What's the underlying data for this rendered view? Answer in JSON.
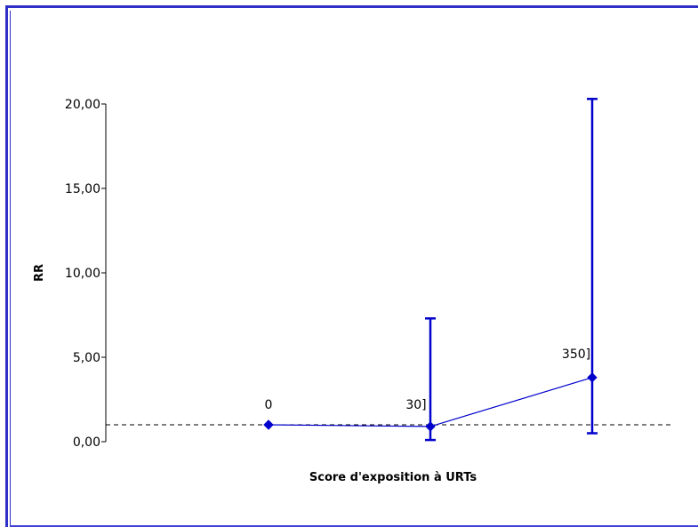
{
  "chart_data": {
    "type": "line",
    "xlabel": "Score d'exposition à URTs",
    "ylabel": "RR",
    "ylim": [
      0,
      20
    ],
    "yticks": [
      "0,00",
      "5,00",
      "10,00",
      "15,00",
      "20,00"
    ],
    "grid": false,
    "reference_line": 1.0,
    "series": [
      {
        "point_labels": [
          "0",
          "30]",
          "350]"
        ],
        "values": [
          1.0,
          0.9,
          3.8
        ],
        "ci_low": [
          1.0,
          0.1,
          0.5
        ],
        "ci_high": [
          1.0,
          7.3,
          20.3
        ]
      }
    ],
    "colors": {
      "series": "#0000cc",
      "reference": "#000000",
      "axis": "#000000"
    }
  }
}
